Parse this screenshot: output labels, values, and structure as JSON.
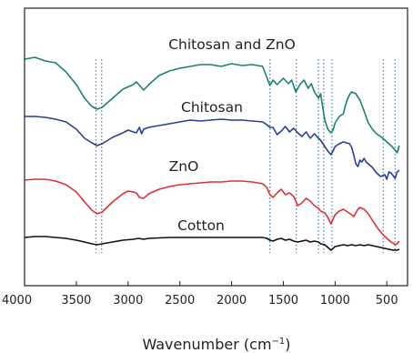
{
  "chart_data": {
    "type": "line",
    "xlabel": "Wavenumber (cm",
    "xlabel_sup": "−1",
    "xlabel_end": ")",
    "ylabel": "",
    "xlim": [
      4000,
      300
    ],
    "x_reversed": true,
    "y_ticks_shown": false,
    "x_ticks": [
      "4000",
      "3500",
      "3000",
      "2500",
      "2000",
      "1500",
      "1000",
      "500"
    ],
    "reference_lines": [
      3310,
      3255,
      1630,
      1375,
      1160,
      1110,
      1030,
      535,
      420
    ],
    "series": [
      {
        "name": "Chitosan and ZnO",
        "color": "#1a8070",
        "points": [
          [
            4000,
            65
          ],
          [
            3900,
            63
          ],
          [
            3800,
            67
          ],
          [
            3700,
            69
          ],
          [
            3600,
            79
          ],
          [
            3500,
            93
          ],
          [
            3420,
            108
          ],
          [
            3350,
            117
          ],
          [
            3300,
            120
          ],
          [
            3250,
            118
          ],
          [
            3150,
            108
          ],
          [
            3050,
            98
          ],
          [
            2950,
            93
          ],
          [
            2920,
            90
          ],
          [
            2880,
            95
          ],
          [
            2850,
            99
          ],
          [
            2800,
            93
          ],
          [
            2700,
            83
          ],
          [
            2600,
            78
          ],
          [
            2500,
            75
          ],
          [
            2400,
            73
          ],
          [
            2300,
            71
          ],
          [
            2200,
            71
          ],
          [
            2100,
            73
          ],
          [
            2000,
            70
          ],
          [
            1900,
            72
          ],
          [
            1800,
            71
          ],
          [
            1700,
            73
          ],
          [
            1660,
            85
          ],
          [
            1630,
            94
          ],
          [
            1600,
            88
          ],
          [
            1560,
            93
          ],
          [
            1500,
            86
          ],
          [
            1450,
            92
          ],
          [
            1420,
            88
          ],
          [
            1380,
            101
          ],
          [
            1340,
            93
          ],
          [
            1300,
            88
          ],
          [
            1260,
            97
          ],
          [
            1230,
            92
          ],
          [
            1200,
            101
          ],
          [
            1160,
            108
          ],
          [
            1140,
            103
          ],
          [
            1100,
            132
          ],
          [
            1070,
            142
          ],
          [
            1040,
            146
          ],
          [
            1020,
            143
          ],
          [
            1000,
            135
          ],
          [
            960,
            128
          ],
          [
            920,
            125
          ],
          [
            900,
            116
          ],
          [
            880,
            109
          ],
          [
            860,
            104
          ],
          [
            840,
            101
          ],
          [
            800,
            103
          ],
          [
            760,
            110
          ],
          [
            720,
            122
          ],
          [
            680,
            135
          ],
          [
            640,
            142
          ],
          [
            600,
            147
          ],
          [
            560,
            150
          ],
          [
            520,
            154
          ],
          [
            480,
            158
          ],
          [
            450,
            161
          ],
          [
            420,
            165
          ],
          [
            400,
            168
          ],
          [
            380,
            160
          ]
        ]
      },
      {
        "name": "Chitosan",
        "color": "#2a3f96",
        "points": [
          [
            4000,
            128
          ],
          [
            3900,
            128
          ],
          [
            3800,
            129
          ],
          [
            3700,
            131
          ],
          [
            3600,
            134
          ],
          [
            3500,
            142
          ],
          [
            3420,
            152
          ],
          [
            3350,
            157
          ],
          [
            3300,
            160
          ],
          [
            3250,
            158
          ],
          [
            3150,
            151
          ],
          [
            3050,
            146
          ],
          [
            3000,
            143
          ],
          [
            2950,
            145
          ],
          [
            2920,
            146
          ],
          [
            2890,
            140
          ],
          [
            2870,
            147
          ],
          [
            2850,
            142
          ],
          [
            2800,
            140
          ],
          [
            2700,
            138
          ],
          [
            2600,
            136
          ],
          [
            2500,
            134
          ],
          [
            2400,
            132
          ],
          [
            2300,
            133
          ],
          [
            2200,
            132
          ],
          [
            2100,
            131
          ],
          [
            2000,
            132
          ],
          [
            1900,
            132
          ],
          [
            1800,
            133
          ],
          [
            1700,
            134
          ],
          [
            1660,
            137
          ],
          [
            1630,
            140
          ],
          [
            1600,
            140
          ],
          [
            1560,
            148
          ],
          [
            1520,
            144
          ],
          [
            1480,
            139
          ],
          [
            1440,
            145
          ],
          [
            1400,
            141
          ],
          [
            1360,
            146
          ],
          [
            1320,
            150
          ],
          [
            1280,
            145
          ],
          [
            1240,
            152
          ],
          [
            1200,
            147
          ],
          [
            1160,
            152
          ],
          [
            1140,
            154
          ],
          [
            1100,
            161
          ],
          [
            1070,
            166
          ],
          [
            1040,
            170
          ],
          [
            1020,
            166
          ],
          [
            1000,
            161
          ],
          [
            960,
            158
          ],
          [
            920,
            156
          ],
          [
            890,
            157
          ],
          [
            860,
            158
          ],
          [
            840,
            162
          ],
          [
            820,
            170
          ],
          [
            800,
            180
          ],
          [
            780,
            183
          ],
          [
            760,
            176
          ],
          [
            740,
            178
          ],
          [
            720,
            174
          ],
          [
            700,
            178
          ],
          [
            680,
            180
          ],
          [
            660,
            182
          ],
          [
            640,
            184
          ],
          [
            600,
            190
          ],
          [
            560,
            194
          ],
          [
            520,
            192
          ],
          [
            500,
            197
          ],
          [
            480,
            189
          ],
          [
            460,
            190
          ],
          [
            440,
            193
          ],
          [
            420,
            196
          ],
          [
            400,
            189
          ],
          [
            380,
            187
          ]
        ]
      },
      {
        "name": "ZnO",
        "color": "#dc3237",
        "points": [
          [
            4000,
            198
          ],
          [
            3900,
            197
          ],
          [
            3800,
            197
          ],
          [
            3700,
            199
          ],
          [
            3600,
            203
          ],
          [
            3500,
            211
          ],
          [
            3420,
            222
          ],
          [
            3350,
            231
          ],
          [
            3300,
            235
          ],
          [
            3250,
            233
          ],
          [
            3150,
            222
          ],
          [
            3050,
            213
          ],
          [
            3000,
            210
          ],
          [
            2950,
            211
          ],
          [
            2920,
            212
          ],
          [
            2890,
            217
          ],
          [
            2850,
            218
          ],
          [
            2800,
            213
          ],
          [
            2700,
            208
          ],
          [
            2600,
            205
          ],
          [
            2500,
            203
          ],
          [
            2400,
            202
          ],
          [
            2300,
            201
          ],
          [
            2200,
            200
          ],
          [
            2100,
            200
          ],
          [
            2000,
            199
          ],
          [
            1900,
            199
          ],
          [
            1800,
            200
          ],
          [
            1700,
            202
          ],
          [
            1660,
            206
          ],
          [
            1630,
            214
          ],
          [
            1600,
            217
          ],
          [
            1560,
            212
          ],
          [
            1520,
            208
          ],
          [
            1480,
            214
          ],
          [
            1440,
            212
          ],
          [
            1400,
            216
          ],
          [
            1380,
            221
          ],
          [
            1360,
            226
          ],
          [
            1320,
            223
          ],
          [
            1280,
            218
          ],
          [
            1240,
            221
          ],
          [
            1200,
            226
          ],
          [
            1160,
            229
          ],
          [
            1140,
            232
          ],
          [
            1100,
            234
          ],
          [
            1070,
            239
          ],
          [
            1040,
            246
          ],
          [
            1020,
            241
          ],
          [
            1000,
            236
          ],
          [
            960,
            232
          ],
          [
            920,
            230
          ],
          [
            880,
            233
          ],
          [
            840,
            236
          ],
          [
            820,
            238
          ],
          [
            800,
            234
          ],
          [
            780,
            230
          ],
          [
            760,
            228
          ],
          [
            720,
            230
          ],
          [
            680,
            235
          ],
          [
            640,
            242
          ],
          [
            600,
            249
          ],
          [
            560,
            255
          ],
          [
            520,
            260
          ],
          [
            500,
            262
          ],
          [
            480,
            264
          ],
          [
            460,
            266
          ],
          [
            440,
            267
          ],
          [
            420,
            269
          ],
          [
            400,
            268
          ],
          [
            380,
            265
          ]
        ]
      },
      {
        "name": "Cotton",
        "color": "#111111",
        "points": [
          [
            4000,
            261
          ],
          [
            3900,
            260
          ],
          [
            3800,
            260
          ],
          [
            3700,
            261
          ],
          [
            3600,
            262
          ],
          [
            3500,
            264
          ],
          [
            3420,
            266
          ],
          [
            3350,
            268
          ],
          [
            3300,
            269
          ],
          [
            3250,
            268
          ],
          [
            3150,
            266
          ],
          [
            3050,
            264
          ],
          [
            2950,
            263
          ],
          [
            2900,
            262
          ],
          [
            2850,
            263
          ],
          [
            2800,
            262
          ],
          [
            2600,
            261
          ],
          [
            2400,
            261
          ],
          [
            2200,
            261
          ],
          [
            2000,
            261
          ],
          [
            1900,
            261
          ],
          [
            1800,
            261
          ],
          [
            1700,
            261
          ],
          [
            1660,
            262
          ],
          [
            1630,
            264
          ],
          [
            1600,
            265
          ],
          [
            1560,
            263
          ],
          [
            1520,
            262
          ],
          [
            1480,
            264
          ],
          [
            1440,
            263
          ],
          [
            1400,
            265
          ],
          [
            1360,
            266
          ],
          [
            1320,
            265
          ],
          [
            1280,
            264
          ],
          [
            1240,
            266
          ],
          [
            1200,
            265
          ],
          [
            1160,
            266
          ],
          [
            1140,
            268
          ],
          [
            1100,
            269
          ],
          [
            1070,
            272
          ],
          [
            1040,
            275
          ],
          [
            1020,
            273
          ],
          [
            1000,
            271
          ],
          [
            960,
            270
          ],
          [
            920,
            269
          ],
          [
            880,
            270
          ],
          [
            840,
            269
          ],
          [
            800,
            270
          ],
          [
            760,
            269
          ],
          [
            720,
            270
          ],
          [
            680,
            269
          ],
          [
            640,
            270
          ],
          [
            600,
            271
          ],
          [
            560,
            272
          ],
          [
            520,
            273
          ],
          [
            480,
            274
          ],
          [
            440,
            275
          ],
          [
            400,
            275
          ],
          [
            380,
            274
          ]
        ]
      }
    ]
  }
}
